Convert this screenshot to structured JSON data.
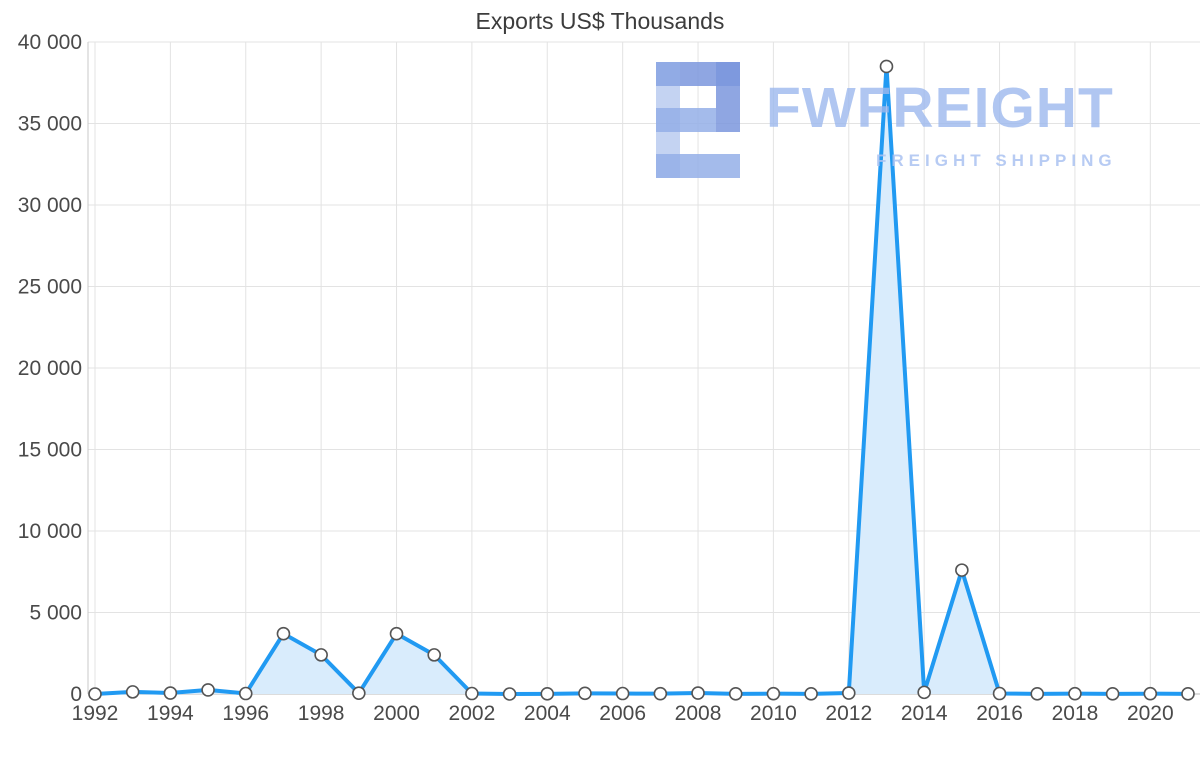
{
  "title": "Exports US$ Thousands",
  "watermark": {
    "brand": "FWFREIGHT",
    "tagline": "FREIGHT SHIPPING"
  },
  "chart_data": {
    "type": "area",
    "title": "Exports US$ Thousands",
    "xlabel": "",
    "ylabel": "",
    "x": [
      1992,
      1993,
      1994,
      1995,
      1996,
      1997,
      1998,
      1999,
      2000,
      2001,
      2002,
      2003,
      2004,
      2005,
      2006,
      2007,
      2008,
      2009,
      2010,
      2011,
      2012,
      2013,
      2014,
      2015,
      2016,
      2017,
      2018,
      2019,
      2020,
      2021
    ],
    "values": [
      0,
      130,
      60,
      250,
      30,
      3700,
      2400,
      50,
      3700,
      2400,
      30,
      0,
      10,
      40,
      30,
      20,
      60,
      10,
      20,
      10,
      60,
      38500,
      100,
      7600,
      30,
      10,
      20,
      10,
      20,
      10
    ],
    "ylim": [
      0,
      40000
    ],
    "y_ticks": [
      0,
      5000,
      10000,
      15000,
      20000,
      25000,
      30000,
      35000,
      40000
    ],
    "y_tick_labels": [
      "0",
      "5 000",
      "10 000",
      "15 000",
      "20 000",
      "25 000",
      "30 000",
      "35 000",
      "40 000"
    ],
    "x_tick_labels": [
      "1992",
      "1994",
      "1996",
      "1998",
      "2000",
      "2002",
      "2004",
      "2006",
      "2008",
      "2010",
      "2012",
      "2014",
      "2016",
      "2018",
      "2020"
    ],
    "grid": true,
    "legend": "none",
    "line_color": "#219af2",
    "area_color": "#d9ecfc",
    "marker_fill": "#ffffff",
    "marker_stroke": "#555555",
    "grid_color": "#e3e3e3",
    "axis_color": "#b8b8b8",
    "tick_label_color": "#4a4a4a"
  }
}
